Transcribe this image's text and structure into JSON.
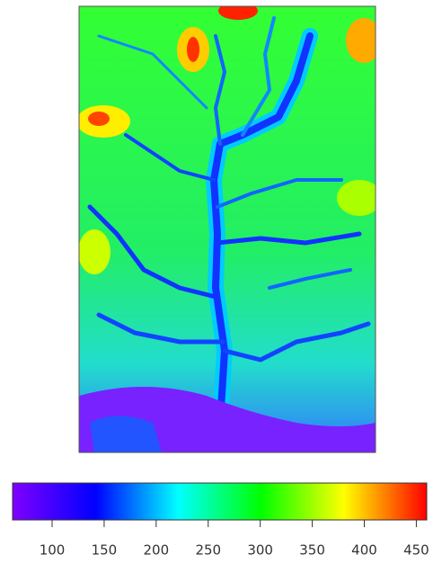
{
  "map": {
    "colorbar": {
      "clim": [
        62,
        460
      ],
      "ticks": [
        100,
        150,
        200,
        250,
        300,
        350,
        400,
        450
      ],
      "colors": [
        "#7f00ff",
        "#0000ff",
        "#00ffff",
        "#00ff00",
        "#ffff00",
        "#ff0000"
      ]
    }
  }
}
